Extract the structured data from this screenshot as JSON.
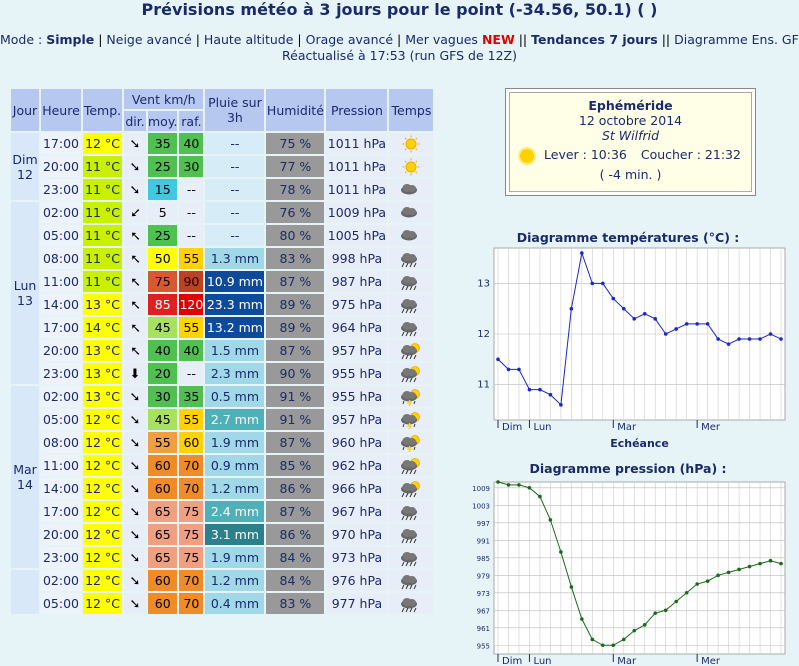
{
  "header": {
    "title": "Prévisions météo à 3 jours pour le point (-34.56, 50.1) ( )",
    "mode_label": "Mode : ",
    "modes": [
      "Simple",
      "Neige avancé",
      "Haute altitude",
      "Orage avancé",
      "Mer vagues"
    ],
    "new_label": "NEW",
    "trend": "Tendances 7 jours",
    "ens": "Diagramme Ens. GFS",
    "refresh": "Réactualisé à 17:53 (run GFS de 12Z)"
  },
  "table": {
    "headers": {
      "jour": "Jour",
      "heure": "Heure",
      "temp": "Temp.",
      "vent": "Vent km/h",
      "dir": "dir.",
      "moy": "moy.",
      "raf": "raf.",
      "pluie": "Pluie sur 3h",
      "humidite": "Humidité",
      "pression": "Pression",
      "temps": "Temps"
    },
    "days": [
      {
        "label": "Dim 12",
        "rows": 3
      },
      {
        "label": "Lun 13",
        "rows": 8
      },
      {
        "label": "Mar 14",
        "rows": 8
      },
      {
        "label": "",
        "rows": 2
      }
    ],
    "rows": [
      {
        "h": "17:00",
        "t": "12 °C",
        "tc": "#ffff00",
        "d": "arrow-se",
        "moy": "35",
        "mc": "#50c050",
        "raf": "40",
        "rc": "#50c050",
        "pl": "--",
        "pc": "n",
        "hum": "75 %",
        "pr": "1011 hPa",
        "wx": "sunny"
      },
      {
        "h": "20:00",
        "t": "11 °C",
        "tc": "#c8f000",
        "d": "arrow-se",
        "moy": "25",
        "mc": "#50c050",
        "raf": "30",
        "rc": "#50c050",
        "pl": "--",
        "pc": "n",
        "hum": "77 %",
        "pr": "1011 hPa",
        "wx": "sunny"
      },
      {
        "h": "23:00",
        "t": "11 °C",
        "tc": "#c8f000",
        "d": "arrow-se",
        "moy": "15",
        "mc": "#40c8e0",
        "raf": "--",
        "rc": "#e8eef8",
        "pl": "--",
        "pc": "n",
        "hum": "78 %",
        "pr": "1011 hPa",
        "wx": "cloudy"
      },
      {
        "h": "02:00",
        "t": "11 °C",
        "tc": "#c8f000",
        "d": "arrow-sw",
        "moy": "5",
        "mc": "#e8eef8",
        "raf": "--",
        "rc": "#e8eef8",
        "pl": "--",
        "pc": "n",
        "hum": "76 %",
        "pr": "1009 hPa",
        "wx": "cloudy"
      },
      {
        "h": "05:00",
        "t": "11 °C",
        "tc": "#c8f000",
        "d": "arrow-nw",
        "moy": "25",
        "mc": "#50c050",
        "raf": "--",
        "rc": "#e8eef8",
        "pl": "--",
        "pc": "n",
        "hum": "80 %",
        "pr": "1005 hPa",
        "wx": "cloudy"
      },
      {
        "h": "08:00",
        "t": "11 °C",
        "tc": "#c8f000",
        "d": "arrow-nw",
        "moy": "50",
        "mc": "#ffff00",
        "raf": "55",
        "rc": "#ffd200",
        "pl": "1.3 mm",
        "pc": "a",
        "hum": "83 %",
        "pr": "998 hPa",
        "wx": "rain"
      },
      {
        "h": "11:00",
        "t": "11 °C",
        "tc": "#c8f000",
        "d": "arrow-nw",
        "moy": "75",
        "mc": "#d85830",
        "raf": "90",
        "rc": "#c04020",
        "pl": "10.9 mm",
        "pc": "d",
        "hum": "87 %",
        "pr": "987 hPa",
        "wx": "rain"
      },
      {
        "h": "14:00",
        "t": "13 °C",
        "tc": "#ffff00",
        "d": "arrow-nw",
        "moy": "85",
        "mc": "#e02020",
        "raf": "120",
        "rc": "#e00000",
        "pl": "23.3 mm",
        "pc": "d",
        "hum": "89 %",
        "pr": "975 hPa",
        "wx": "rain"
      },
      {
        "h": "17:00",
        "t": "14 °C",
        "tc": "#ffff00",
        "d": "arrow-nw",
        "moy": "45",
        "mc": "#a8e060",
        "raf": "55",
        "rc": "#ffd200",
        "pl": "13.2 mm",
        "pc": "d",
        "hum": "89 %",
        "pr": "964 hPa",
        "wx": "rain"
      },
      {
        "h": "20:00",
        "t": "13 °C",
        "tc": "#ffff00",
        "d": "arrow-nw",
        "moy": "40",
        "mc": "#50c050",
        "raf": "40",
        "rc": "#50c050",
        "pl": "1.5 mm",
        "pc": "a",
        "hum": "87 %",
        "pr": "957 hPa",
        "wx": "rain-sun"
      },
      {
        "h": "23:00",
        "t": "13 °C",
        "tc": "#ffff00",
        "d": "arrow-s",
        "moy": "20",
        "mc": "#50c050",
        "raf": "--",
        "rc": "#e8eef8",
        "pl": "2.3 mm",
        "pc": "a",
        "hum": "90 %",
        "pr": "955 hPa",
        "wx": "rain-sun"
      },
      {
        "h": "02:00",
        "t": "13 °C",
        "tc": "#ffff00",
        "d": "arrow-se",
        "moy": "30",
        "mc": "#50c050",
        "raf": "35",
        "rc": "#50c050",
        "pl": "0.5 mm",
        "pc": "a",
        "hum": "91 %",
        "pr": "955 hPa",
        "wx": "storm"
      },
      {
        "h": "05:00",
        "t": "12 °C",
        "tc": "#ffff00",
        "d": "arrow-se",
        "moy": "45",
        "mc": "#a8e060",
        "raf": "55",
        "rc": "#ffd200",
        "pl": "2.7 mm",
        "pc": "b",
        "hum": "91 %",
        "pr": "957 hPa",
        "wx": "storm"
      },
      {
        "h": "08:00",
        "t": "12 °C",
        "tc": "#ffff00",
        "d": "arrow-se",
        "moy": "55",
        "mc": "#f0a040",
        "raf": "60",
        "rc": "#ffd200",
        "pl": "1.9 mm",
        "pc": "a",
        "hum": "87 %",
        "pr": "960 hPa",
        "wx": "storm"
      },
      {
        "h": "11:00",
        "t": "12 °C",
        "tc": "#ffff00",
        "d": "arrow-se",
        "moy": "60",
        "mc": "#f08c28",
        "raf": "70",
        "rc": "#f08c28",
        "pl": "0.9 mm",
        "pc": "a",
        "hum": "85 %",
        "pr": "962 hPa",
        "wx": "rain-sun"
      },
      {
        "h": "14:00",
        "t": "12 °C",
        "tc": "#ffff00",
        "d": "arrow-se",
        "moy": "60",
        "mc": "#f08c28",
        "raf": "70",
        "rc": "#f08c28",
        "pl": "1.2 mm",
        "pc": "a",
        "hum": "86 %",
        "pr": "966 hPa",
        "wx": "rain-sun"
      },
      {
        "h": "17:00",
        "t": "12 °C",
        "tc": "#ffff00",
        "d": "arrow-se",
        "moy": "65",
        "mc": "#f0a080",
        "raf": "75",
        "rc": "#f0a080",
        "pl": "2.4 mm",
        "pc": "b",
        "hum": "87 %",
        "pr": "967 hPa",
        "wx": "rain"
      },
      {
        "h": "20:00",
        "t": "12 °C",
        "tc": "#ffff00",
        "d": "arrow-se",
        "moy": "65",
        "mc": "#f0a080",
        "raf": "75",
        "rc": "#f0a080",
        "pl": "3.1 mm",
        "pc": "b2",
        "hum": "86 %",
        "pr": "970 hPa",
        "wx": "rain"
      },
      {
        "h": "23:00",
        "t": "12 °C",
        "tc": "#ffff00",
        "d": "arrow-se",
        "moy": "65",
        "mc": "#f0a080",
        "raf": "75",
        "rc": "#f0a080",
        "pl": "1.9 mm",
        "pc": "a",
        "hum": "84 %",
        "pr": "973 hPa",
        "wx": "rain"
      },
      {
        "h": "02:00",
        "t": "12 °C",
        "tc": "#ffff00",
        "d": "arrow-se",
        "moy": "60",
        "mc": "#f08c28",
        "raf": "70",
        "rc": "#f08c28",
        "pl": "1.2 mm",
        "pc": "a",
        "hum": "84 %",
        "pr": "976 hPa",
        "wx": "rain"
      },
      {
        "h": "05:00",
        "t": "12 °C",
        "tc": "#ffff00",
        "d": "arrow-se",
        "moy": "60",
        "mc": "#f08c28",
        "raf": "70",
        "rc": "#f08c28",
        "pl": "0.4 mm",
        "pc": "a",
        "hum": "83 %",
        "pr": "977 hPa",
        "wx": "rain"
      }
    ]
  },
  "ephemeride": {
    "title": "Ephéméride",
    "date": "12 octobre 2014",
    "saint": "St Wilfrid",
    "lever": "Lever : 10:36",
    "coucher": "Coucher : 21:32",
    "diff": "( -4 min. )"
  },
  "chart_data": [
    {
      "type": "line",
      "title": "Diagramme températures (°C) :",
      "xlabel": "Echéance",
      "x_day_labels": [
        "Dim",
        "Lun",
        "Mar",
        "Mer"
      ],
      "ylim": [
        10.3,
        13.7
      ],
      "yticks": [
        11,
        12,
        13
      ],
      "values": [
        11.5,
        11.3,
        11.3,
        10.9,
        10.9,
        10.8,
        10.6,
        12.5,
        13.6,
        13.0,
        13.0,
        12.7,
        12.5,
        12.3,
        12.4,
        12.3,
        12.0,
        12.1,
        12.2,
        12.2,
        12.2,
        11.9,
        11.8,
        11.9,
        11.9,
        11.9,
        12.0,
        11.9
      ],
      "color": "#1a28c8"
    },
    {
      "type": "line",
      "title": "Diagramme pression (hPa) :",
      "xlabel": "",
      "x_day_labels": [
        "Dim",
        "Lun",
        "Mar",
        "Mer"
      ],
      "ylim": [
        952,
        1011
      ],
      "yticks": [
        955,
        961,
        967,
        973,
        979,
        985,
        991,
        997,
        1003,
        1009
      ],
      "values": [
        1011,
        1010,
        1010,
        1009,
        1006,
        998,
        987,
        975,
        964,
        957,
        955,
        955,
        957,
        960,
        962,
        966,
        967,
        970,
        973,
        976,
        977,
        979,
        980,
        981,
        982,
        983,
        984,
        983
      ],
      "color": "#1a6a1a"
    }
  ]
}
